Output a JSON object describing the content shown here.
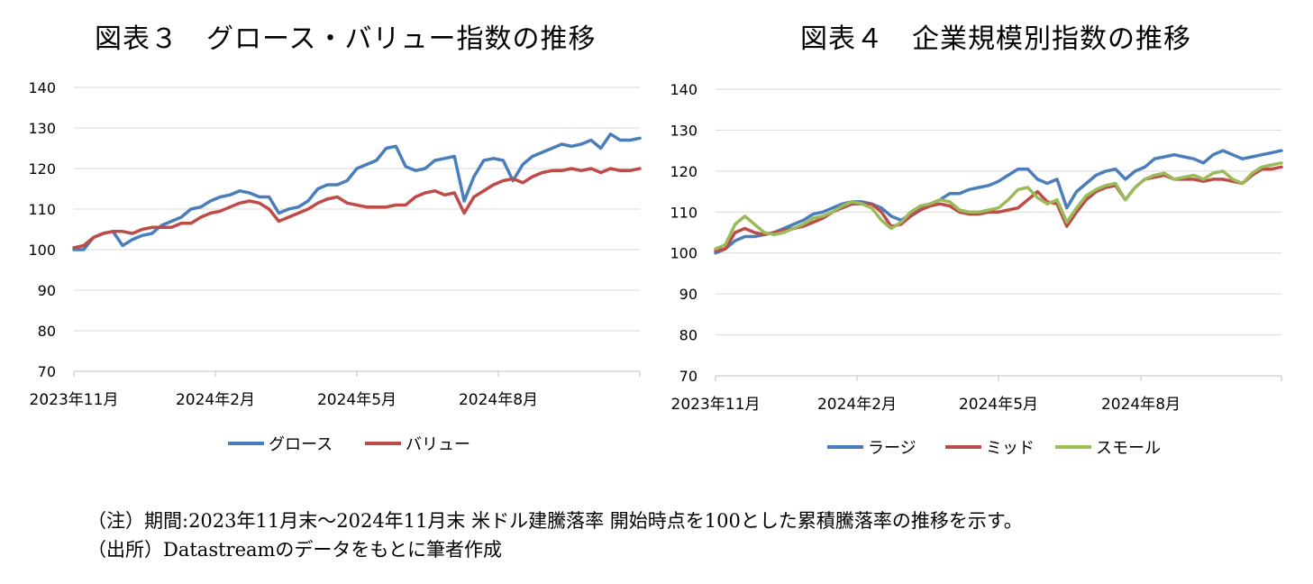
{
  "notes": {
    "line1": "（注）期間:2023年11月末～2024年11月末 米ドル建騰落率 開始時点を100とした累積騰落率の推移を示す。",
    "line2": "（出所）Datastreamのデータをもとに筆者作成"
  },
  "chart_data": [
    {
      "type": "line",
      "title": "図表３　グロース・バリュー指数の推移",
      "xlabel": "",
      "ylabel": "",
      "ylim": [
        70,
        140
      ],
      "yticks": [
        70,
        80,
        90,
        100,
        110,
        120,
        130,
        140
      ],
      "xticks": [
        "2023年11月",
        "2024年2月",
        "2024年5月",
        "2024年8月"
      ],
      "x_range": [
        "2023-11-30",
        "2024-11-29"
      ],
      "grid": true,
      "legend": "bottom",
      "series": [
        {
          "name": "グロース",
          "color": "#4a7ebb",
          "values": [
            100,
            100,
            103,
            104,
            104.5,
            101,
            102.5,
            103.5,
            104,
            106,
            107,
            108,
            110,
            110.5,
            112,
            113,
            113.5,
            114.5,
            114,
            113,
            113,
            109,
            110,
            110.5,
            112,
            115,
            116,
            116,
            117,
            120,
            121,
            122,
            125,
            125.5,
            120.5,
            119.5,
            120,
            122,
            122.5,
            123,
            112,
            118,
            122,
            122.5,
            122,
            117,
            121,
            123,
            124,
            125,
            126,
            125.5,
            126,
            127,
            125,
            128.5,
            127,
            127,
            127.5
          ]
        },
        {
          "name": "バリュー",
          "color": "#be4b48",
          "values": [
            100.5,
            101,
            103,
            104,
            104.5,
            104.5,
            104,
            105,
            105.5,
            105.5,
            105.5,
            106.5,
            106.5,
            108,
            109,
            109.5,
            110.5,
            111.5,
            112,
            111.5,
            110,
            107,
            108,
            109,
            110,
            111.5,
            112.5,
            113,
            111.5,
            111,
            110.5,
            110.5,
            110.5,
            111,
            111,
            113,
            114,
            114.5,
            113.5,
            114,
            109,
            113,
            114.5,
            116,
            117,
            117.5,
            116.5,
            118,
            119,
            119.5,
            119.5,
            120,
            119.5,
            120,
            119,
            120,
            119.5,
            119.5,
            120
          ]
        }
      ]
    },
    {
      "type": "line",
      "title": "図表４　企業規模別指数の推移",
      "xlabel": "",
      "ylabel": "",
      "ylim": [
        70,
        140
      ],
      "yticks": [
        70,
        80,
        90,
        100,
        110,
        120,
        130,
        140
      ],
      "xticks": [
        "2023年11月",
        "2024年2月",
        "2024年5月",
        "2024年8月"
      ],
      "x_range": [
        "2023-11-30",
        "2024-11-29"
      ],
      "grid": true,
      "legend": "bottom",
      "series": [
        {
          "name": "ラージ",
          "color": "#4a7ebb",
          "values": [
            100,
            101,
            103,
            104,
            104,
            104.5,
            105,
            106,
            107,
            108,
            109.5,
            110,
            111,
            112,
            112.5,
            112.5,
            112,
            111,
            109,
            108,
            109.5,
            111,
            112,
            113,
            114.5,
            114.5,
            115.5,
            116,
            116.5,
            117.5,
            119,
            120.5,
            120.5,
            118,
            117,
            118,
            111,
            115,
            117,
            119,
            120,
            120.5,
            118,
            120,
            121,
            123,
            123.5,
            124,
            123.5,
            123,
            122,
            124,
            125,
            124,
            123,
            123.5,
            124,
            124.5,
            125
          ]
        },
        {
          "name": "ミッド",
          "color": "#be4b48",
          "values": [
            100.5,
            101,
            105,
            106,
            105,
            104.5,
            105,
            105.5,
            106,
            106.5,
            107.5,
            108.5,
            110,
            111,
            112,
            112,
            112,
            110,
            106.5,
            107,
            109,
            110.5,
            111.5,
            112,
            111.5,
            110,
            109.5,
            109.5,
            110,
            110,
            110.5,
            111,
            113,
            115,
            112.5,
            112,
            106.5,
            110,
            113,
            115,
            116,
            116.5,
            113,
            116,
            118,
            118.5,
            119,
            118,
            118,
            118,
            117.5,
            118,
            118,
            117.5,
            117,
            119,
            120.5,
            120.5,
            121
          ]
        },
        {
          "name": "スモール",
          "color": "#9bbb59",
          "values": [
            101,
            102,
            107,
            109,
            107,
            105,
            104.5,
            105,
            106,
            107,
            108.5,
            109,
            110,
            111.5,
            112.5,
            112,
            111,
            108,
            106,
            107.5,
            110,
            111.5,
            112,
            113,
            112.5,
            110.5,
            110,
            110,
            110.5,
            111,
            113,
            115.5,
            116,
            113.5,
            112,
            113,
            107.5,
            111,
            114,
            115.5,
            116.5,
            117,
            113,
            116,
            118,
            119,
            119.5,
            118,
            118.5,
            119,
            118,
            119.5,
            120,
            118,
            117,
            119.5,
            121,
            121.5,
            122
          ]
        }
      ]
    }
  ]
}
